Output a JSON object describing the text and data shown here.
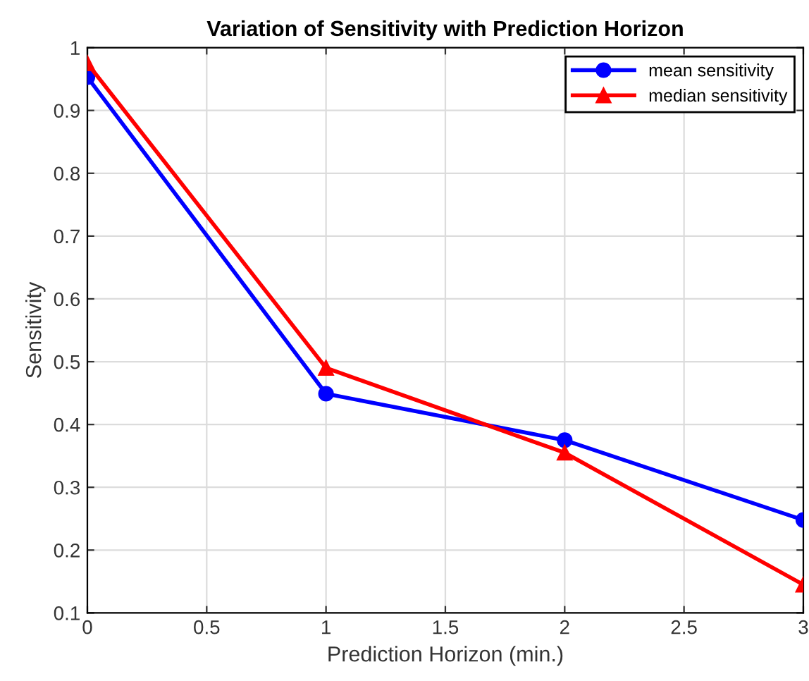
{
  "chart_data": {
    "type": "line",
    "title": "Variation of Sensitivity with Prediction Horizon",
    "xlabel": "Prediction Horizon (min.)",
    "ylabel": "Sensitivity",
    "x": [
      0,
      1,
      2,
      3
    ],
    "series": [
      {
        "name": "mean sensitivity",
        "color": "#0000ff",
        "marker": "circle",
        "values": [
          0.953,
          0.449,
          0.375,
          0.248
        ]
      },
      {
        "name": "median sensitivity",
        "color": "#ff0000",
        "marker": "triangle",
        "values": [
          0.975,
          0.49,
          0.355,
          0.145
        ]
      }
    ],
    "xlim": [
      0,
      3
    ],
    "xticks": [
      0,
      0.5,
      1,
      1.5,
      2,
      2.5,
      3
    ],
    "ylim": [
      0.1,
      1
    ],
    "yticks": [
      0.1,
      0.2,
      0.3,
      0.4,
      0.5,
      0.6,
      0.7,
      0.8,
      0.9,
      1
    ],
    "grid": true,
    "legend": "top right",
    "line_style": "solid"
  }
}
